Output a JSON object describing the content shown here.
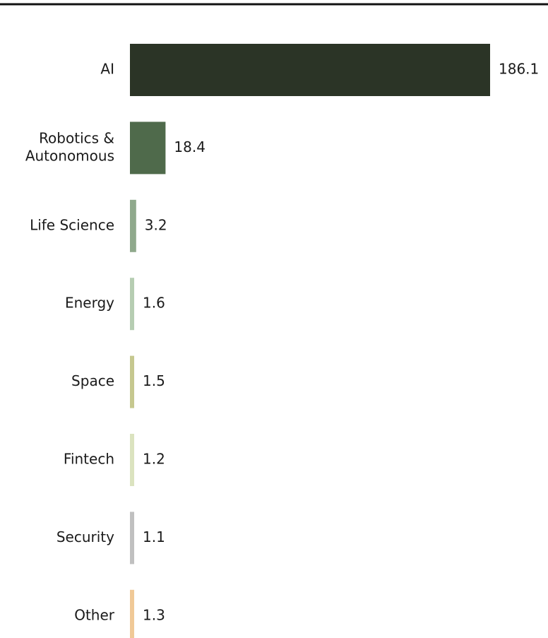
{
  "chart_data": {
    "type": "bar",
    "orientation": "horizontal",
    "categories": [
      [
        "AI"
      ],
      [
        "Robotics &",
        "Autonomous"
      ],
      [
        "Life Science"
      ],
      [
        "Energy"
      ],
      [
        "Space"
      ],
      [
        "Fintech"
      ],
      [
        "Security"
      ],
      [
        "Other"
      ]
    ],
    "values": [
      186.1,
      18.4,
      3.2,
      1.6,
      1.5,
      1.2,
      1.1,
      1.3
    ],
    "value_labels": [
      "186.1",
      "18.4",
      "3.2",
      "1.6",
      "1.5",
      "1.2",
      "1.1",
      "1.3"
    ],
    "colors": [
      "#2b3426",
      "#4f6a4b",
      "#8fa98c",
      "#b6cdb2",
      "#c6c88f",
      "#dbe3bf",
      "#c0c0c0",
      "#f0c997"
    ],
    "grid": false,
    "legend": "none"
  },
  "style": {
    "top_rule_color": "#111111"
  }
}
